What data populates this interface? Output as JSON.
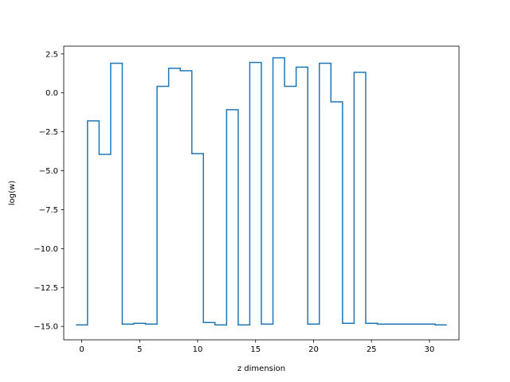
{
  "chart_data": {
    "type": "line",
    "drawstyle": "steps-mid",
    "title": "",
    "xlabel": "z dimension",
    "ylabel": "log(w)",
    "xlim": [
      -1.55,
      32.55
    ],
    "ylim": [
      -15.86,
      3.0
    ],
    "grid": false,
    "legend": "none",
    "xticks": [
      0,
      5,
      10,
      15,
      20,
      25,
      30
    ],
    "yticks": [
      2.5,
      0.0,
      -2.5,
      -5.0,
      -7.5,
      -10.0,
      -12.5,
      -15.0
    ],
    "xtick_labels": [
      "0",
      "5",
      "10",
      "15",
      "20",
      "25",
      "30"
    ],
    "ytick_labels": [
      "2.5",
      "0.0",
      "−2.5",
      "−5.0",
      "−7.5",
      "−10.0",
      "−12.5",
      "−15.0"
    ],
    "series": [
      {
        "color": "#1f77b4",
        "x": [
          0,
          1,
          2,
          3,
          4,
          5,
          6,
          7,
          8,
          9,
          10,
          11,
          12,
          13,
          14,
          15,
          16,
          17,
          18,
          19,
          20,
          21,
          22,
          23,
          24,
          25,
          26,
          27,
          28,
          29,
          30,
          31
        ],
        "y": [
          -14.9,
          -1.8,
          -3.95,
          1.9,
          -14.85,
          -14.8,
          -14.85,
          0.42,
          1.58,
          1.42,
          -3.9,
          -14.75,
          -14.9,
          -1.08,
          -14.9,
          1.95,
          -14.85,
          2.25,
          0.42,
          1.65,
          -14.85,
          1.9,
          -0.58,
          -14.8,
          1.32,
          -14.8,
          -14.85,
          -14.85,
          -14.85,
          -14.85,
          -14.85,
          -14.9
        ]
      }
    ]
  }
}
